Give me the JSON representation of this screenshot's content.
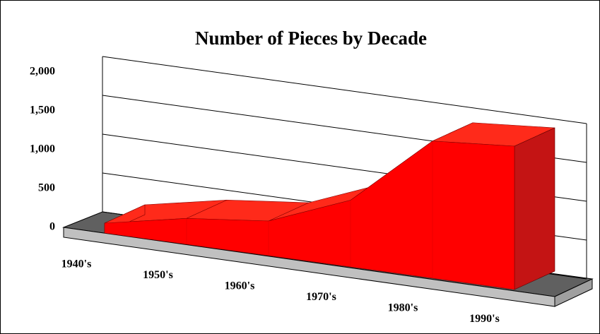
{
  "chart_data": {
    "type": "area3d",
    "title": "Number of Pieces by Decade",
    "categories": [
      "1940's",
      "1950's",
      "1960's",
      "1970's",
      "1980's",
      "1990's"
    ],
    "values": [
      80,
      210,
      280,
      540,
      1110,
      1160
    ],
    "color": "#ff0000",
    "ylim": [
      0,
      2000
    ],
    "yticks": [
      0,
      500,
      {
        "value": 1000,
        "label": "1,000"
      },
      {
        "value": 1500,
        "label": "1,500"
      },
      {
        "value": 2000,
        "label": "2,000"
      }
    ],
    "grid": true
  }
}
